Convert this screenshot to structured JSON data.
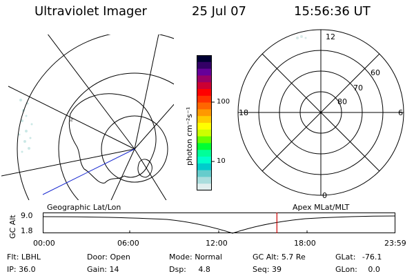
{
  "header": {
    "title": "Ultraviolet Imager",
    "date": "25 Jul 07",
    "time": "15:56:36 UT"
  },
  "geo_map": {
    "label": "Geographic Lat/Lon"
  },
  "colorbar": {
    "unit_label": "photon cm⁻²s⁻¹",
    "tick_100": "100",
    "tick_10": "10",
    "colors": [
      "#000033",
      "#330066",
      "#660099",
      "#990066",
      "#cc0033",
      "#ff0000",
      "#ff3300",
      "#ff6600",
      "#ff9900",
      "#ffcc00",
      "#ffff00",
      "#ccff00",
      "#66ff00",
      "#00ff33",
      "#00ff99",
      "#00ffcc",
      "#00cccc",
      "#66cccc",
      "#aadddd",
      "#e0eeee"
    ]
  },
  "polar_plot": {
    "label": "Apex MLat/MLT",
    "mlt_top": "12",
    "mlt_left": "18",
    "mlt_right": "6",
    "mlt_bottom": "0",
    "lat_60": "60",
    "lat_70": "70",
    "lat_80": "80"
  },
  "timeline": {
    "ylabel": "GC Alt",
    "y_top": "9.0",
    "y_bottom": "1.8",
    "x_ticks": [
      "00:00",
      "06:00",
      "12:00",
      "18:00",
      "23:59"
    ],
    "current_time_fraction": 0.664,
    "marker_color": "#cc0000"
  },
  "info": {
    "flt_label": "Flt:",
    "flt_value": "LBHL",
    "ip_label": "IP:",
    "ip_value": "36.0",
    "door_label": "Door:",
    "door_value": "Open",
    "gain_label": "Gain:",
    "gain_value": "14",
    "mode_label": "Mode:",
    "mode_value": "Normal",
    "dsp_label": "Dsp:",
    "dsp_value": "4.8",
    "gcalt_label": "GC Alt:",
    "gcalt_value": "5.7 Re",
    "seq_label": "Seq:",
    "seq_value": "39",
    "glat_label": "GLat:",
    "glat_value": "-76.1",
    "glon_label": "GLon:",
    "glon_value": "0.0"
  }
}
